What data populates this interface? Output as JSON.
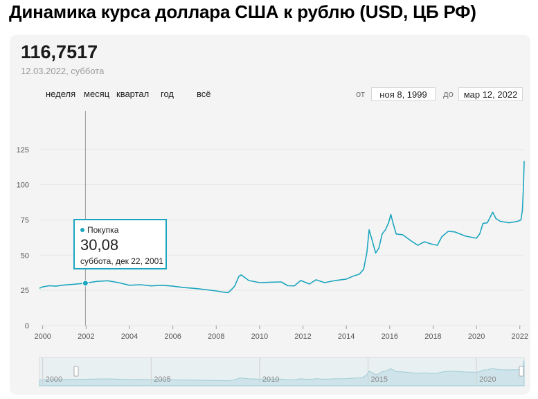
{
  "page": {
    "title": "Динамика курса доллара США к рублю (USD, ЦБ РФ)"
  },
  "header": {
    "current_value": "116,7517",
    "current_date": "12.03.2022, суббота"
  },
  "period_tabs": [
    "неделя",
    "месяц",
    "квартал",
    "год",
    "всё"
  ],
  "range": {
    "from_label": "от",
    "from_value": "ноя 8, 1999",
    "to_label": "до",
    "to_value": "мар 12, 2022"
  },
  "tooltip": {
    "series": "Покупка",
    "value": "30,08",
    "date": "суббота, дек 22, 2001"
  },
  "colors": {
    "line": "#1ca5be",
    "grid": "#e6e6e6",
    "card_bg": "#f4f4f4"
  },
  "chart_data": {
    "type": "line",
    "x_ticks": [
      "2000",
      "2002",
      "2004",
      "2006",
      "2008",
      "2010",
      "2012",
      "2014",
      "2016",
      "2018",
      "2020",
      "2022"
    ],
    "y_ticks": [
      "0",
      "25",
      "50",
      "75",
      "100",
      "125"
    ],
    "xlim": [
      1999.85,
      2022.2
    ],
    "ylim": [
      0,
      150
    ],
    "grid": true,
    "series": [
      {
        "name": "Покупка",
        "x": [
          1999.85,
          2000.0,
          2000.3,
          2000.6,
          2001.0,
          2001.5,
          2001.97,
          2002.5,
          2003.0,
          2003.5,
          2004.0,
          2004.5,
          2005.0,
          2005.5,
          2006.0,
          2006.5,
          2007.0,
          2007.5,
          2008.0,
          2008.3,
          2008.55,
          2008.7,
          2008.85,
          2009.05,
          2009.15,
          2009.5,
          2010.0,
          2010.5,
          2011.0,
          2011.3,
          2011.6,
          2011.9,
          2012.3,
          2012.6,
          2013.0,
          2013.5,
          2014.0,
          2014.3,
          2014.6,
          2014.8,
          2014.95,
          2015.05,
          2015.2,
          2015.35,
          2015.5,
          2015.65,
          2015.8,
          2015.95,
          2016.05,
          2016.15,
          2016.3,
          2016.6,
          2017.0,
          2017.3,
          2017.6,
          2017.9,
          2018.2,
          2018.4,
          2018.7,
          2019.0,
          2019.5,
          2020.0,
          2020.15,
          2020.3,
          2020.5,
          2020.75,
          2020.9,
          2021.1,
          2021.5,
          2021.9,
          2022.05,
          2022.12,
          2022.17,
          2022.2
        ],
        "values": [
          26.5,
          27.5,
          28.3,
          28.0,
          28.8,
          29.4,
          30.08,
          31.4,
          31.8,
          30.5,
          28.6,
          29.0,
          28.2,
          28.6,
          28.0,
          27.0,
          26.4,
          25.5,
          24.6,
          23.8,
          23.4,
          25.5,
          28.0,
          35.0,
          36.0,
          32.0,
          30.5,
          30.8,
          31.0,
          28.3,
          28.2,
          32.0,
          29.5,
          32.5,
          30.5,
          32.0,
          33.0,
          35.0,
          36.5,
          40.0,
          52.0,
          68.0,
          60.0,
          51.5,
          55.0,
          65.0,
          68.0,
          73.0,
          79.0,
          73.0,
          65.0,
          64.5,
          60.0,
          57.0,
          59.5,
          58.0,
          57.0,
          63.0,
          67.0,
          66.5,
          63.5,
          62.0,
          65.0,
          72.5,
          73.0,
          80.5,
          76.0,
          74.0,
          73.0,
          74.0,
          75.0,
          82.0,
          100.0,
          116.8
        ]
      }
    ],
    "highlight": {
      "x": 2001.97,
      "y": 30.08
    },
    "navigator": {
      "labels": [
        "2000",
        "2005",
        "2010",
        "2015",
        "2020"
      ]
    }
  }
}
